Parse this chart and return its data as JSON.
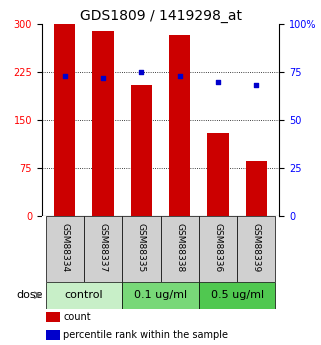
{
  "title": "GDS1809 / 1419298_at",
  "samples": [
    "GSM88334",
    "GSM88337",
    "GSM88335",
    "GSM88338",
    "GSM88336",
    "GSM88339"
  ],
  "counts": [
    300,
    290,
    205,
    283,
    130,
    85
  ],
  "percentile_ranks": [
    73,
    72,
    75,
    73,
    70,
    68
  ],
  "groups": [
    {
      "label": "control",
      "color": "#c8efc8",
      "start": 0,
      "end": 1
    },
    {
      "label": "0.1 ug/ml",
      "color": "#78d878",
      "start": 2,
      "end": 3
    },
    {
      "label": "0.5 ug/ml",
      "color": "#50c850",
      "start": 4,
      "end": 5
    }
  ],
  "dose_label": "dose",
  "ylim_left": [
    0,
    300
  ],
  "ylim_right": [
    0,
    100
  ],
  "yticks_left": [
    0,
    75,
    150,
    225,
    300
  ],
  "ytick_labels_left": [
    "0",
    "75",
    "150",
    "225",
    "300"
  ],
  "yticks_right": [
    0,
    25,
    50,
    75,
    100
  ],
  "ytick_labels_right": [
    "0",
    "25",
    "50",
    "75",
    "100%"
  ],
  "grid_ticks": [
    75,
    150,
    225
  ],
  "bar_color": "#cc0000",
  "dot_color": "#0000cc",
  "bar_width": 0.55,
  "title_fontsize": 10,
  "tick_fontsize": 7,
  "sample_fontsize": 6.5,
  "group_fontsize": 8,
  "legend_fontsize": 7,
  "sample_bg_color": "#d0d0d0"
}
